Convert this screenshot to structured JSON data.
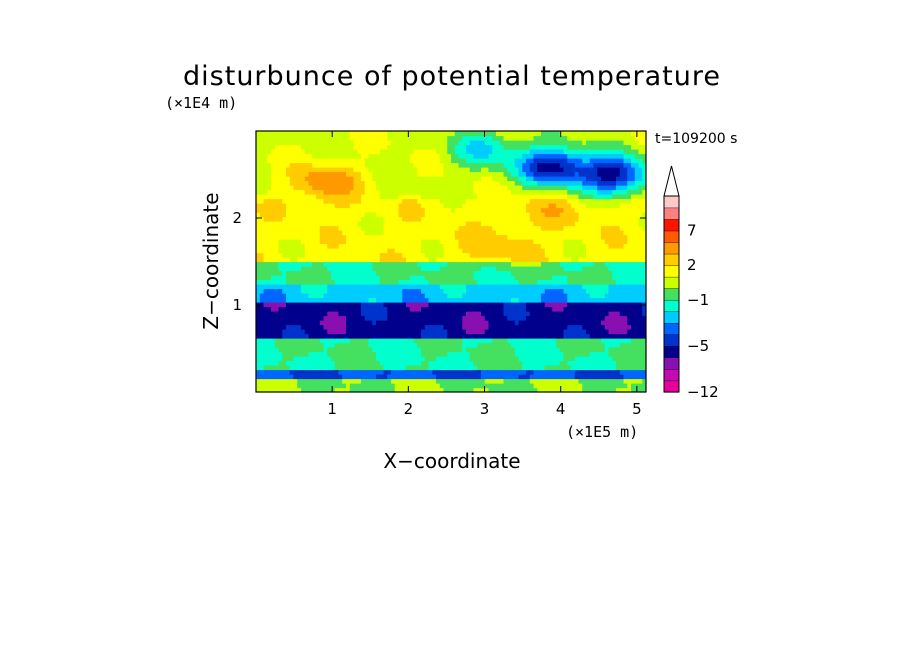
{
  "chart_data": {
    "type": "heatmap",
    "title": "disturbunce of potential temperature",
    "time_label": "t=109200 s",
    "xlabel": "X−coordinate",
    "ylabel": "Z−coordinate",
    "x_unit": "(×1E5 m)",
    "y_unit": "(×1E4 m)",
    "xlim": [
      0,
      5.12
    ],
    "ylim": [
      0,
      3.0
    ],
    "x_ticks": [
      1,
      2,
      3,
      4,
      5
    ],
    "x_tick_labels": [
      "1",
      "2",
      "3",
      "4",
      "5"
    ],
    "y_ticks": [
      1,
      2
    ],
    "y_tick_labels": [
      "1",
      "2"
    ],
    "colorbar": {
      "levels": [
        -12,
        -10,
        -8,
        -6,
        -5,
        -4,
        -3,
        -2,
        -1,
        0,
        1,
        2,
        3,
        5,
        7,
        9,
        11,
        13
      ],
      "colors": [
        "#e8009a",
        "#c40bb1",
        "#8a0fb0",
        "#00008c",
        "#0033cc",
        "#0066ff",
        "#00ccff",
        "#00ffcc",
        "#44e060",
        "#ccff00",
        "#ffff00",
        "#ffcc00",
        "#ff9900",
        "#ff5a00",
        "#ff1400",
        "#ff8080",
        "#ffc8c8"
      ],
      "labels": [
        "−12",
        "−5",
        "−1",
        "2",
        "7"
      ],
      "label_values": [
        -12,
        -5,
        -1,
        2,
        7
      ],
      "extend": "max"
    },
    "field_description_values": {
      "bands": [
        {
          "z_range": [
            0.0,
            0.15
          ],
          "value": 0
        },
        {
          "z_range": [
            0.15,
            0.25
          ],
          "value": -4
        },
        {
          "z_range": [
            0.25,
            0.6
          ],
          "value": -1
        },
        {
          "z_range": [
            0.6,
            1.05
          ],
          "value": -5.5
        },
        {
          "z_range": [
            1.05,
            1.25
          ],
          "value": -2.5
        },
        {
          "z_range": [
            1.25,
            1.5
          ],
          "value": -1
        },
        {
          "z_range": [
            1.5,
            2.2
          ],
          "value": 1.5
        },
        {
          "z_range": [
            2.2,
            3.0
          ],
          "value": 0.8
        }
      ],
      "features": [
        {
          "x": 0.9,
          "z": 2.4,
          "value": 4
        },
        {
          "x": 3.2,
          "z": 1.7,
          "value": 2.5
        },
        {
          "x": 3.9,
          "z": 2.1,
          "value": 2.5
        },
        {
          "x": 3.0,
          "z": 2.8,
          "value": -2
        },
        {
          "x": 3.9,
          "z": 2.6,
          "value": -5.5
        },
        {
          "x": 4.7,
          "z": 2.5,
          "value": -5.5
        }
      ]
    }
  }
}
